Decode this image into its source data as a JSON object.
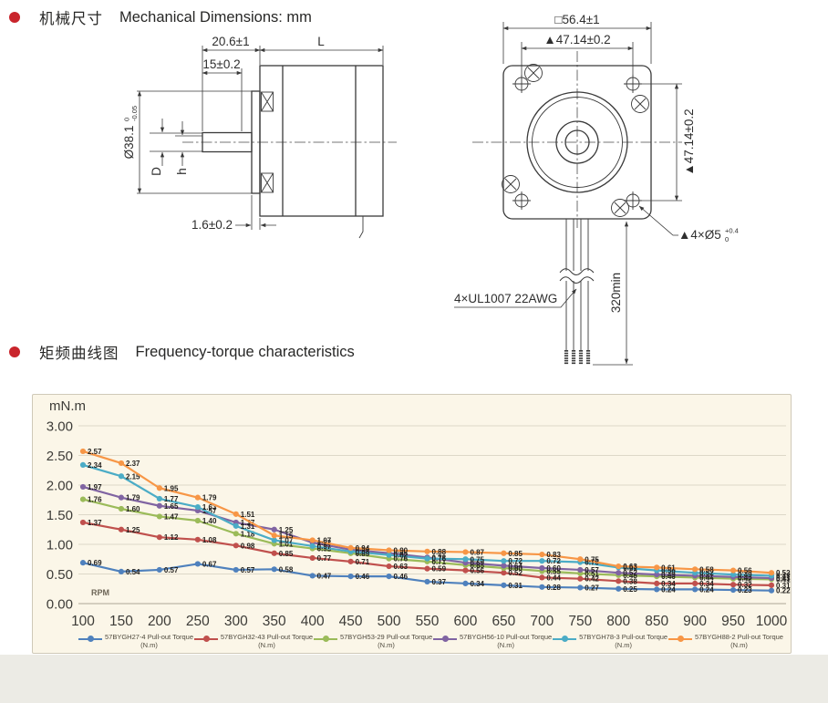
{
  "theme": {
    "accent": "#c9252c",
    "chart_bg": "#fbf6e8",
    "chart_border": "#cfc9b8",
    "page_strip": "#ecebe5"
  },
  "sections": {
    "mechanical": {
      "title_zh": "机械尺寸",
      "title_en": "Mechanical Dimensions: mm"
    },
    "torque": {
      "title_zh": "矩频曲线图",
      "title_en": "Frequency-torque characteristics"
    }
  },
  "side_view": {
    "dim_boss_shaft": "20.6±1",
    "dim_shaft": "15±0.2",
    "dim_body_length": "L",
    "dim_pilot_main": "Ø38.1",
    "dim_pilot_upper": "0",
    "dim_pilot_lower": "-0.05",
    "dim_shaft_dia": "D",
    "dim_flat": "h",
    "dim_plate_thickness": "1.6±0.2"
  },
  "front_view": {
    "dim_frame": "□56.4±1",
    "dim_hole_spacing_h": "▲47.14±0.2",
    "dim_hole_spacing_v": "▲47.14±0.2",
    "dim_mount_holes_main": "▲4×Ø5",
    "dim_mount_holes_upper": "+0.4",
    "dim_mount_holes_lower": "0",
    "wire_spec": "4×UL1007 22AWG",
    "wire_length": "320min"
  },
  "chart_data": {
    "type": "line",
    "ylabel_unit": "mN.m",
    "xlabel_unit": "RPM",
    "grid": true,
    "legend_position": "bottom",
    "ylim": [
      0,
      3
    ],
    "yticks": [
      "0.00",
      "0.50",
      "1.00",
      "1.50",
      "2.00",
      "2.50",
      "3.00"
    ],
    "x": [
      100,
      150,
      200,
      250,
      300,
      350,
      400,
      450,
      500,
      550,
      600,
      650,
      700,
      750,
      800,
      850,
      900,
      950,
      1000
    ],
    "series": [
      {
        "name": "57BYGH27-4 Pull-out Torque",
        "unit": "(N.m)",
        "color": "#4f81bd",
        "values": [
          0.69,
          0.54,
          0.57,
          0.67,
          0.57,
          0.58,
          0.47,
          0.46,
          0.46,
          0.37,
          0.34,
          0.31,
          0.28,
          0.27,
          0.25,
          0.24,
          0.24,
          0.23,
          0.22
        ]
      },
      {
        "name": "57BYGH32-43 Pull-out Torque",
        "unit": "(N.m)",
        "color": "#c0504d",
        "values": [
          1.37,
          1.25,
          1.12,
          1.08,
          0.98,
          0.85,
          0.77,
          0.71,
          0.63,
          0.59,
          0.56,
          0.52,
          0.44,
          0.42,
          0.38,
          0.34,
          0.34,
          0.32,
          0.31
        ]
      },
      {
        "name": "57BYGH53-29 Pull-out Torque",
        "unit": "(N.m)",
        "color": "#9bbb59",
        "values": [
          1.76,
          1.6,
          1.47,
          1.4,
          1.18,
          1.01,
          0.93,
          0.85,
          0.76,
          0.71,
          0.65,
          0.6,
          0.55,
          0.51,
          0.48,
          0.46,
          0.44,
          0.42,
          0.41
        ]
      },
      {
        "name": "57BYGH56-10 Pull-out Torque",
        "unit": "(N.m)",
        "color": "#8064a2",
        "values": [
          1.97,
          1.79,
          1.65,
          1.57,
          1.37,
          1.25,
          1.03,
          0.91,
          0.85,
          0.78,
          0.69,
          0.64,
          0.6,
          0.57,
          0.52,
          0.49,
          0.47,
          0.45,
          0.43
        ]
      },
      {
        "name": "57BYGH78-3 Pull-out Torque",
        "unit": "(N.m)",
        "color": "#4bacc6",
        "values": [
          2.34,
          2.15,
          1.77,
          1.63,
          1.31,
          1.07,
          0.97,
          0.88,
          0.82,
          0.76,
          0.75,
          0.72,
          0.72,
          0.7,
          0.61,
          0.56,
          0.52,
          0.49,
          0.47
        ]
      },
      {
        "name": "57BYGH88-2 Pull-out Torque",
        "unit": "(N.m)",
        "color": "#f79646",
        "values": [
          2.57,
          2.37,
          1.95,
          1.79,
          1.51,
          1.15,
          1.07,
          0.94,
          0.9,
          0.88,
          0.87,
          0.85,
          0.83,
          0.75,
          0.63,
          0.61,
          0.58,
          0.56,
          0.52
        ]
      }
    ]
  }
}
